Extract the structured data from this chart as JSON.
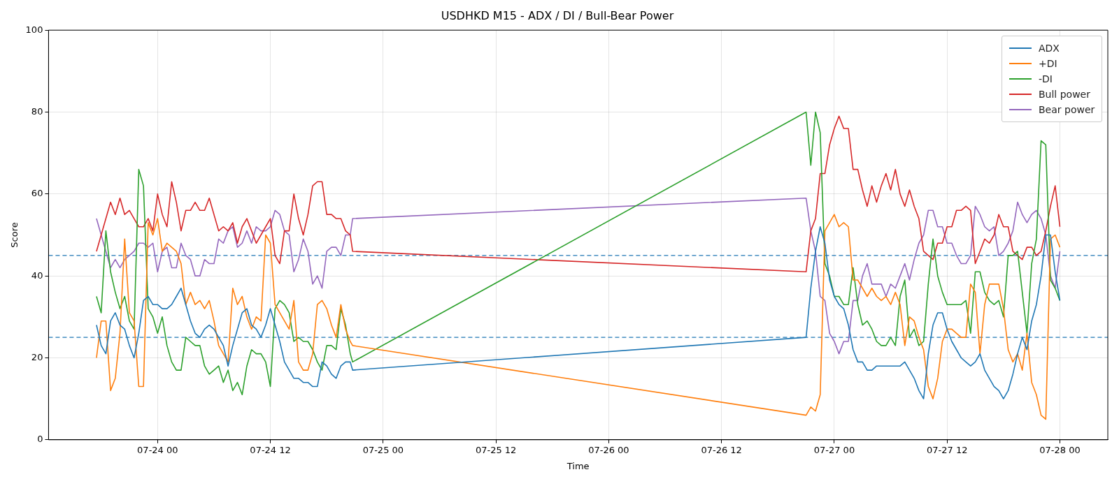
{
  "chart_data": {
    "type": "line",
    "title": "USDHKD M15 - ADX / DI / Bull-Bear Power",
    "xlabel": "Time",
    "ylabel": "Score",
    "x": [
      "--07-23T17:30",
      "--07-23T18:00",
      "--07-23T18:30",
      "--07-23T19:00",
      "--07-23T19:30",
      "--07-23T20:00",
      "--07-23T20:30",
      "--07-23T21:00",
      "--07-23T21:30",
      "--07-23T22:00",
      "--07-23T22:30",
      "--07-23T23:00",
      "--07-23T23:30",
      "--07-24T00:00",
      "--07-24T00:30",
      "--07-24T01:00",
      "--07-24T01:30",
      "--07-24T02:00",
      "--07-24T02:30",
      "--07-24T03:00",
      "--07-24T03:30",
      "--07-24T04:00",
      "--07-24T04:30",
      "--07-24T05:00",
      "--07-24T05:30",
      "--07-24T06:00",
      "--07-24T06:30",
      "--07-24T07:00",
      "--07-24T07:30",
      "--07-24T08:00",
      "--07-24T08:30",
      "--07-24T09:00",
      "--07-24T09:30",
      "--07-24T10:00",
      "--07-24T10:30",
      "--07-24T11:00",
      "--07-24T11:30",
      "--07-24T12:00",
      "--07-24T12:30",
      "--07-24T13:00",
      "--07-24T13:30",
      "--07-24T14:00",
      "--07-24T14:30",
      "--07-24T15:00",
      "--07-24T15:30",
      "--07-24T16:00",
      "--07-24T16:30",
      "--07-24T17:00",
      "--07-24T17:30",
      "--07-24T18:00",
      "--07-24T18:30",
      "--07-24T19:00",
      "--07-24T19:30",
      "--07-24T20:00",
      "--07-24T20:30",
      "--07-24T20:45",
      "--07-26T21:00",
      "--07-26T21:30",
      "--07-26T22:00",
      "--07-26T22:30",
      "--07-26T23:00",
      "--07-26T23:30",
      "--07-27T00:00",
      "--07-27T00:30",
      "--07-27T01:00",
      "--07-27T01:30",
      "--07-27T02:00",
      "--07-27T02:30",
      "--07-27T03:00",
      "--07-27T03:30",
      "--07-27T04:00",
      "--07-27T04:30",
      "--07-27T05:00",
      "--07-27T05:30",
      "--07-27T06:00",
      "--07-27T06:30",
      "--07-27T07:00",
      "--07-27T07:30",
      "--07-27T08:00",
      "--07-27T08:30",
      "--07-27T09:00",
      "--07-27T09:30",
      "--07-27T10:00",
      "--07-27T10:30",
      "--07-27T11:00",
      "--07-27T11:30",
      "--07-27T12:00",
      "--07-27T12:30",
      "--07-27T13:00",
      "--07-27T13:30",
      "--07-27T14:00",
      "--07-27T14:30",
      "--07-27T15:00",
      "--07-27T15:30",
      "--07-27T16:00",
      "--07-27T16:30",
      "--07-27T17:00",
      "--07-27T17:30",
      "--07-27T18:00",
      "--07-27T18:30",
      "--07-27T19:00",
      "--07-27T19:30",
      "--07-27T20:00",
      "--07-27T20:30",
      "--07-27T21:00",
      "--07-27T21:30",
      "--07-27T22:00",
      "--07-27T22:30",
      "--07-27T23:00",
      "--07-27T23:30",
      "--07-28T00:00"
    ],
    "series": [
      {
        "name": "ADX",
        "color": "#1f77b4",
        "values": [
          28,
          23,
          21,
          29,
          31,
          28,
          27,
          23,
          20,
          26,
          34,
          35,
          33,
          33,
          32,
          32,
          33,
          35,
          37,
          33,
          29,
          26,
          25,
          27,
          28,
          27,
          25,
          23,
          18,
          23,
          27,
          31,
          32,
          28,
          27,
          25,
          28,
          32,
          28,
          24,
          19,
          17,
          15,
          15,
          14,
          14,
          13,
          13,
          19,
          18,
          16,
          15,
          18,
          19,
          19,
          17,
          25,
          37,
          46,
          52,
          48,
          39,
          35,
          33,
          32,
          28,
          22,
          19,
          19,
          17,
          17,
          18,
          18,
          18,
          18,
          18,
          18,
          19,
          17,
          15,
          12,
          10,
          21,
          28,
          31,
          31,
          27,
          24,
          22,
          20,
          19,
          18,
          19,
          21,
          17,
          15,
          13,
          12,
          10,
          12,
          16,
          21,
          25,
          22,
          29,
          33,
          40,
          50,
          50,
          41,
          34
        ]
      },
      {
        "name": "+DI",
        "color": "#ff7f0e",
        "values": [
          20,
          29,
          29,
          12,
          15,
          26,
          49,
          31,
          29,
          13,
          13,
          53,
          50,
          54,
          46,
          48,
          47,
          46,
          43,
          33,
          36,
          33,
          34,
          32,
          34,
          29,
          23,
          21,
          19,
          37,
          33,
          35,
          30,
          27,
          30,
          29,
          50,
          48,
          33,
          31,
          29,
          27,
          34,
          19,
          17,
          17,
          21,
          33,
          34,
          32,
          28,
          25,
          33,
          27,
          24,
          23,
          6,
          8,
          7,
          11,
          51,
          53,
          55,
          52,
          53,
          52,
          39,
          39,
          37,
          35,
          37,
          35,
          34,
          35,
          33,
          36,
          33,
          23,
          30,
          29,
          25,
          22,
          13,
          10,
          15,
          24,
          27,
          27,
          26,
          25,
          25,
          38,
          36,
          21,
          33,
          38,
          38,
          38,
          32,
          22,
          19,
          21,
          17,
          26,
          14,
          11,
          6,
          5,
          49,
          50,
          47
        ]
      },
      {
        "name": "-DI",
        "color": "#2ca02c",
        "values": [
          35,
          31,
          51,
          41,
          36,
          32,
          35,
          29,
          27,
          66,
          62,
          32,
          30,
          26,
          30,
          23,
          19,
          17,
          17,
          25,
          24,
          23,
          23,
          18,
          16,
          17,
          18,
          14,
          17,
          12,
          14,
          11,
          18,
          22,
          21,
          21,
          19,
          13,
          32,
          34,
          33,
          31,
          24,
          25,
          24,
          24,
          22,
          19,
          17,
          23,
          23,
          22,
          32,
          28,
          21,
          19,
          80,
          67,
          80,
          75,
          43,
          40,
          35,
          35,
          33,
          33,
          42,
          33,
          28,
          29,
          27,
          24,
          23,
          23,
          25,
          23,
          35,
          39,
          25,
          27,
          23,
          24,
          38,
          49,
          40,
          36,
          33,
          33,
          33,
          33,
          34,
          26,
          41,
          41,
          36,
          34,
          33,
          34,
          30,
          45,
          45,
          46,
          36,
          26,
          43,
          49,
          73,
          72,
          39,
          37,
          34
        ]
      },
      {
        "name": "Bull power",
        "color": "#d62728",
        "values": [
          46,
          50,
          54,
          58,
          55,
          59,
          55,
          56,
          54,
          52,
          52,
          54,
          51,
          60,
          55,
          52,
          63,
          58,
          51,
          56,
          56,
          58,
          56,
          56,
          59,
          55,
          51,
          52,
          51,
          53,
          48,
          52,
          54,
          51,
          48,
          50,
          52,
          54,
          45,
          43,
          51,
          51,
          60,
          54,
          50,
          55,
          62,
          63,
          63,
          55,
          55,
          54,
          54,
          51,
          50,
          46,
          41,
          51,
          54,
          65,
          65,
          72,
          76,
          79,
          76,
          76,
          66,
          66,
          61,
          57,
          62,
          58,
          62,
          65,
          61,
          66,
          60,
          57,
          61,
          57,
          54,
          46,
          45,
          44,
          48,
          48,
          52,
          52,
          56,
          56,
          57,
          56,
          43,
          46,
          49,
          48,
          50,
          55,
          52,
          52,
          46,
          45,
          44,
          47,
          47,
          45,
          46,
          51,
          57,
          62,
          52
        ]
      },
      {
        "name": "Bear power",
        "color": "#9467bd",
        "values": [
          54,
          50,
          46,
          42,
          44,
          42,
          44,
          45,
          46,
          48,
          48,
          47,
          48,
          41,
          46,
          47,
          42,
          42,
          48,
          45,
          44,
          40,
          40,
          44,
          43,
          43,
          49,
          48,
          51,
          52,
          47,
          48,
          51,
          48,
          52,
          51,
          51,
          52,
          56,
          55,
          51,
          50,
          41,
          44,
          49,
          46,
          38,
          40,
          37,
          46,
          47,
          47,
          45,
          50,
          50,
          54,
          59,
          51,
          46,
          35,
          34,
          26,
          24,
          21,
          24,
          24,
          34,
          34,
          40,
          43,
          38,
          38,
          38,
          35,
          38,
          37,
          40,
          43,
          39,
          44,
          48,
          50,
          56,
          56,
          52,
          52,
          48,
          48,
          45,
          43,
          43,
          45,
          57,
          55,
          52,
          51,
          52,
          45,
          46,
          48,
          51,
          58,
          55,
          53,
          55,
          56,
          54,
          50,
          40,
          37,
          46
        ]
      }
    ],
    "xlim": [
      "--07-23T12:24",
      "--07-28T05:06"
    ],
    "xticks": [
      {
        "value": "--07-24T00:00",
        "label": "07-24 00"
      },
      {
        "value": "--07-24T12:00",
        "label": "07-24 12"
      },
      {
        "value": "--07-25T00:00",
        "label": "07-25 00"
      },
      {
        "value": "--07-25T12:00",
        "label": "07-25 12"
      },
      {
        "value": "--07-26T00:00",
        "label": "07-26 00"
      },
      {
        "value": "--07-26T12:00",
        "label": "07-26 12"
      },
      {
        "value": "--07-27T00:00",
        "label": "07-27 00"
      },
      {
        "value": "--07-27T12:00",
        "label": "07-27 12"
      },
      {
        "value": "--07-28T00:00",
        "label": "07-28 00"
      }
    ],
    "ylim": [
      0,
      100
    ],
    "yticks": [
      0,
      20,
      40,
      60,
      80,
      100
    ],
    "ref_lines": [
      {
        "axis": "y",
        "value": 45,
        "color": "#1f77b4",
        "line_style": "dashed"
      },
      {
        "axis": "y",
        "value": 25,
        "color": "#1f77b4",
        "line_style": "dashed"
      }
    ],
    "grid": true,
    "legend": "top right"
  }
}
